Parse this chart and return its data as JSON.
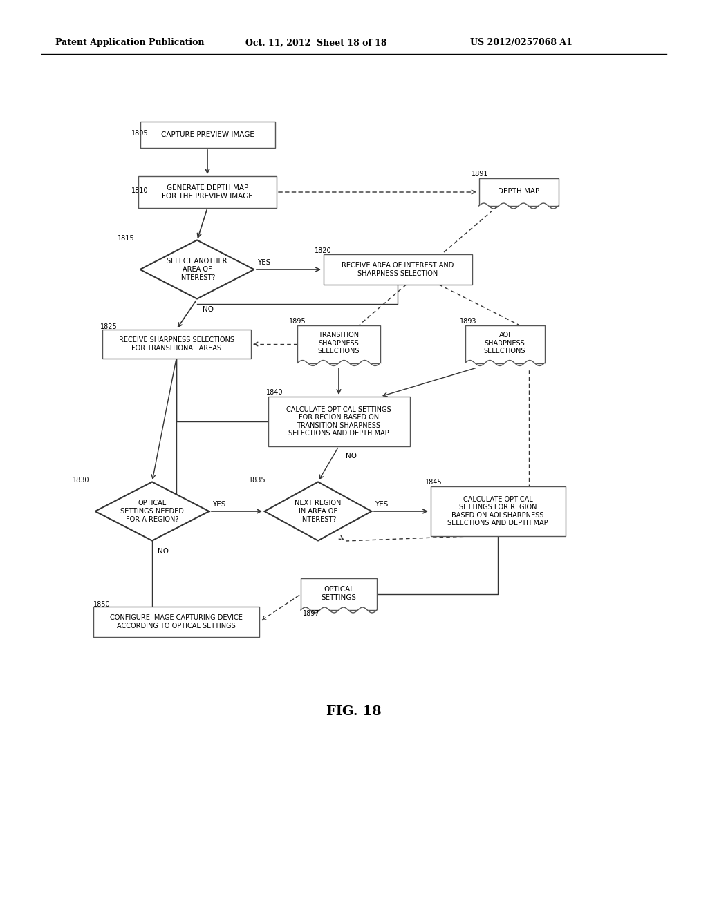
{
  "bg_color": "#ffffff",
  "header_left": "Patent Application Publication",
  "header_mid": "Oct. 11, 2012  Sheet 18 of 18",
  "header_right": "US 2012/0257068 A1",
  "fig_label": "FIG. 18"
}
